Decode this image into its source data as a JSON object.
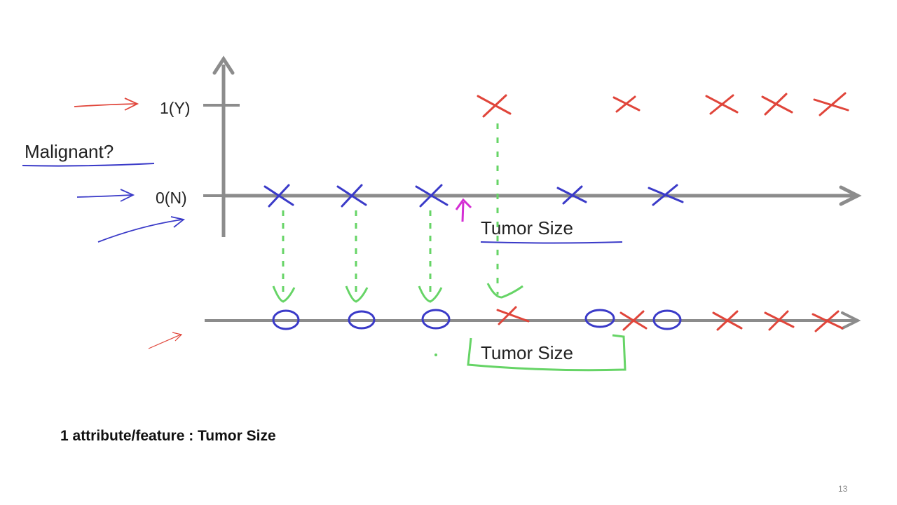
{
  "diagram": {
    "y_tick_top": "1(Y)",
    "y_tick_bottom": "0(N)",
    "y_label": "Malignant?",
    "x_label_top": "Tumor Size",
    "x_label_bottom": "Tumor Size"
  },
  "caption": "1 attribute/feature : Tumor Size",
  "page_number": "13",
  "colors": {
    "axis": "#8c8c8c",
    "malignant": "#e0453a",
    "benign": "#3a3ac8",
    "projection": "#66d466",
    "highlight": "#d42ed4",
    "label_text": "#222222"
  }
}
